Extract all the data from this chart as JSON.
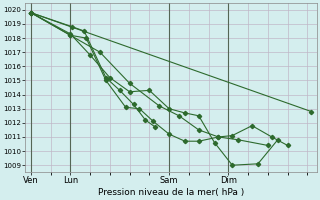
{
  "title": "",
  "xlabel": "Pression niveau de la mer( hPa )",
  "ylabel": "",
  "bg_color": "#d4eeee",
  "line_color": "#2d6a2d",
  "grid_major_color": "#c0b8c8",
  "grid_minor_color": "#e0d8e8",
  "ylim": [
    1008.5,
    1020.5
  ],
  "yticks": [
    1009,
    1010,
    1011,
    1012,
    1013,
    1014,
    1015,
    1016,
    1017,
    1018,
    1019,
    1020
  ],
  "day_labels": [
    "Ven",
    "Lun",
    "Sam",
    "Dim"
  ],
  "day_positions": [
    0,
    2,
    7,
    10
  ],
  "xlim": [
    -0.3,
    14.5
  ],
  "lines": [
    {
      "x": [
        0,
        14.2
      ],
      "y": [
        1019.8,
        1012.8
      ]
    },
    {
      "x": [
        0,
        2.0,
        3.5,
        5.0,
        6.5,
        7.5,
        8.5,
        9.5,
        10.5,
        12.0
      ],
      "y": [
        1019.8,
        1018.2,
        1017.0,
        1014.8,
        1013.2,
        1012.5,
        1011.5,
        1011.0,
        1010.8,
        1010.4
      ]
    },
    {
      "x": [
        0,
        2.0,
        3.0,
        4.0,
        5.0,
        6.0,
        7.0,
        7.8,
        8.5,
        9.3,
        10.2,
        11.5,
        12.5
      ],
      "y": [
        1019.8,
        1018.3,
        1016.8,
        1015.2,
        1014.2,
        1014.3,
        1013.0,
        1012.7,
        1012.5,
        1010.6,
        1009.0,
        1009.1,
        1010.8
      ]
    },
    {
      "x": [
        0,
        2.0,
        2.8,
        3.8,
        4.8,
        5.5,
        6.2,
        7.0,
        7.8,
        8.5,
        9.5,
        10.2,
        11.2,
        12.2,
        13.0
      ],
      "y": [
        1019.8,
        1018.2,
        1018.0,
        1015.0,
        1013.1,
        1013.0,
        1012.1,
        1011.2,
        1010.7,
        1010.7,
        1011.0,
        1011.1,
        1011.8,
        1011.0,
        1010.4
      ]
    },
    {
      "x": [
        0,
        2.1,
        2.7,
        3.8,
        4.5,
        5.2,
        5.8,
        6.3
      ],
      "y": [
        1019.8,
        1018.8,
        1018.5,
        1015.2,
        1014.3,
        1013.3,
        1012.2,
        1011.7
      ]
    }
  ]
}
